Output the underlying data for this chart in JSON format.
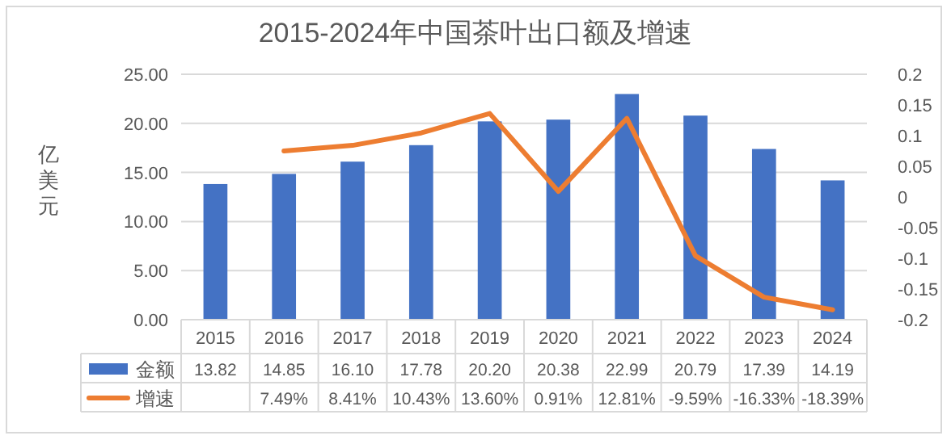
{
  "chart_data": {
    "type": "bar",
    "title": "2015-2024年中国茶叶出口额及增速",
    "ylabel": "亿美元",
    "categories": [
      "2015",
      "2016",
      "2017",
      "2018",
      "2019",
      "2020",
      "2021",
      "2022",
      "2023",
      "2024"
    ],
    "series": [
      {
        "name": "金额",
        "color": "#4472c4",
        "values": [
          13.82,
          14.85,
          16.1,
          17.78,
          20.2,
          20.38,
          22.99,
          20.79,
          17.39,
          14.19
        ],
        "value_labels": [
          "13.82",
          "14.85",
          "16.10",
          "17.78",
          "20.20",
          "20.38",
          "22.99",
          "20.79",
          "17.39",
          "14.19"
        ]
      },
      {
        "name": "增速",
        "type": "line",
        "axis": "y2",
        "color": "#ed7d31",
        "values": [
          null,
          0.0749,
          0.0841,
          0.1043,
          0.136,
          0.0091,
          0.1281,
          -0.0959,
          -0.1633,
          -0.1839
        ],
        "value_labels": [
          null,
          "7.49%",
          "8.41%",
          "10.43%",
          "13.60%",
          "0.91%",
          "12.81%",
          "-9.59%",
          "-16.33%",
          "-18.39%"
        ]
      }
    ],
    "ylim": [
      0,
      25
    ],
    "yticks": [
      {
        "value": 0,
        "label": "0.00"
      },
      {
        "value": 5,
        "label": "5.00"
      },
      {
        "value": 10,
        "label": "10.00"
      },
      {
        "value": 15,
        "label": "15.00"
      },
      {
        "value": 20,
        "label": "20.00"
      },
      {
        "value": 25,
        "label": "25.00"
      }
    ],
    "y2lim": [
      -0.2,
      0.2
    ],
    "y2ticks": [
      -0.2,
      -0.15,
      -0.1,
      -0.05,
      0,
      0.05,
      0.1,
      0.15,
      0.2
    ],
    "grid": "y",
    "legend": "bottom",
    "marker": "none",
    "line_style": "solid"
  }
}
